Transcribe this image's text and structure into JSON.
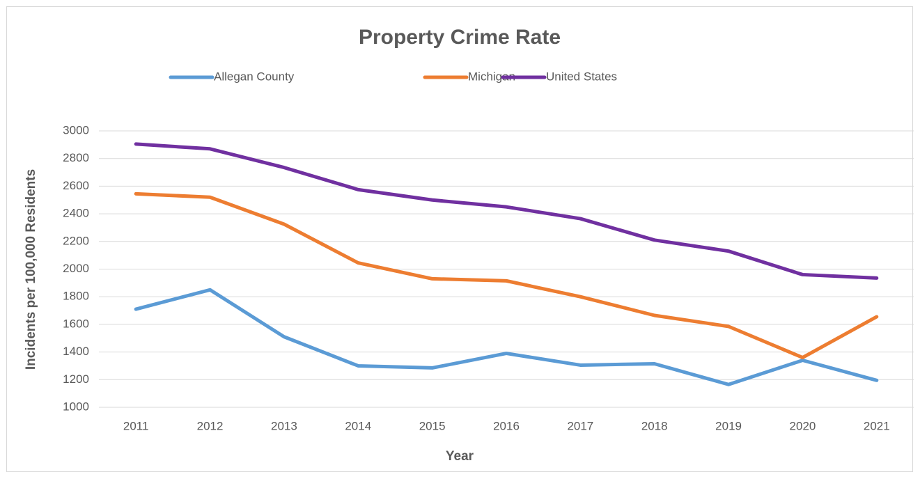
{
  "chart_data": {
    "type": "line",
    "title": "Property Crime Rate",
    "x_label": "Year",
    "y_label": "Incidents per 100,000 Residents",
    "categories": [
      "2011",
      "2012",
      "2013",
      "2014",
      "2015",
      "2016",
      "2017",
      "2018",
      "2019",
      "2020",
      "2021"
    ],
    "series": [
      {
        "name": "Allegan County",
        "color": "#5b9bd5",
        "values": [
          1710,
          1850,
          1510,
          1300,
          1285,
          1390,
          1305,
          1315,
          1165,
          1340,
          1195
        ]
      },
      {
        "name": "Michigan",
        "color": "#ed7d31",
        "values": [
          2545,
          2520,
          2325,
          2045,
          1930,
          1915,
          1800,
          1665,
          1585,
          1360,
          1655
        ]
      },
      {
        "name": "United States",
        "color": "#7030a0",
        "values": [
          2905,
          2870,
          2735,
          2575,
          2500,
          2450,
          2365,
          2210,
          2130,
          1960,
          1935
        ]
      }
    ],
    "ylim": [
      1000,
      3000
    ],
    "yticks": [
      1000,
      1200,
      1400,
      1600,
      1800,
      2000,
      2200,
      2400,
      2600,
      2800,
      3000
    ],
    "grid": true,
    "legend": "top"
  }
}
